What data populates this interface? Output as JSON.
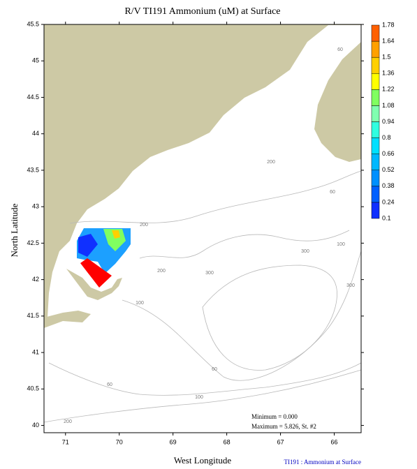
{
  "chart_data": {
    "type": "contour-map",
    "title": "R/V TI191 Ammonium (uM) at Surface",
    "xlabel": "West Longitude",
    "ylabel": "North Latitude",
    "xlim": [
      71.4,
      65.5
    ],
    "ylim": [
      39.9,
      45.5
    ],
    "xticks": [
      71,
      70,
      69,
      68,
      67,
      66
    ],
    "yticks": [
      40,
      40.5,
      41,
      41.5,
      42,
      42.5,
      43,
      43.5,
      44,
      44.5,
      45,
      45.5
    ],
    "colorbar": {
      "levels": [
        0.1,
        0.24,
        0.38,
        0.52,
        0.66,
        0.8,
        0.94,
        1.08,
        1.22,
        1.36,
        1.5,
        1.64,
        1.78
      ],
      "colors": [
        "#1030ff",
        "#0060ff",
        "#0090ff",
        "#00b8ff",
        "#00e0ff",
        "#30ffe0",
        "#80ffb0",
        "#80ff60",
        "#ffff00",
        "#ffd000",
        "#ffa000",
        "#ff6000"
      ]
    },
    "contour_labels": [
      "60",
      "200",
      "200",
      "200",
      "300",
      "300",
      "100",
      "300",
      "100",
      "60",
      "60",
      "100",
      "200",
      "60"
    ],
    "annotations": [
      "Minimum = 0.000",
      "Maximum = 5.826, St. #2"
    ],
    "footer": "TI191 : Ammonium at Surface"
  }
}
